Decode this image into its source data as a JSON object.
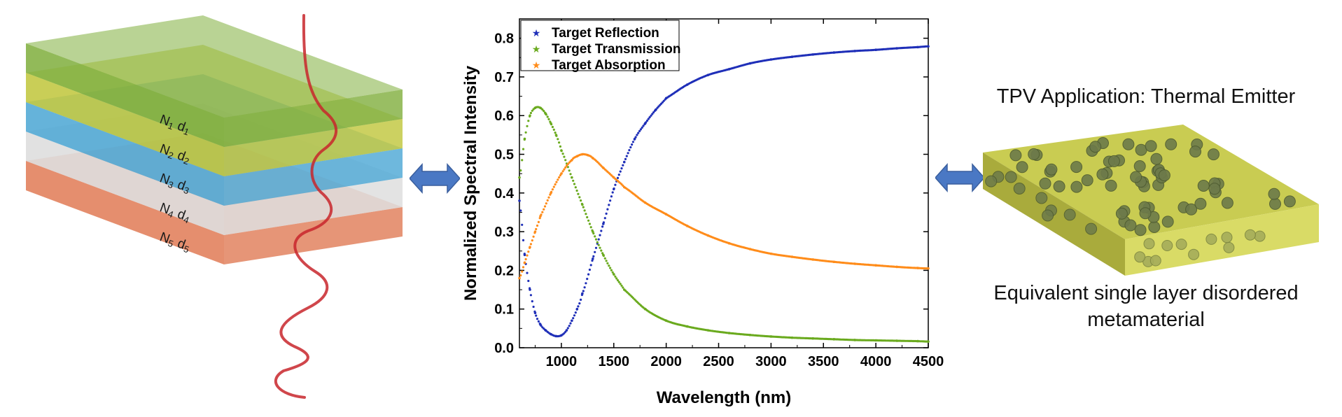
{
  "layers": [
    {
      "n": "N",
      "n_sub": "1",
      "d": "d",
      "d_sub": "1",
      "color": "#7fae3c"
    },
    {
      "n": "N",
      "n_sub": "2",
      "d": "d",
      "d_sub": "2",
      "color": "#bfc63a"
    },
    {
      "n": "N",
      "n_sub": "3",
      "d": "d",
      "d_sub": "3",
      "color": "#4aa6d4"
    },
    {
      "n": "N",
      "n_sub": "4",
      "d": "d",
      "d_sub": "4",
      "color": "#dcdcdc"
    },
    {
      "n": "N",
      "n_sub": "5",
      "d": "d",
      "d_sub": "5",
      "color": "#e07a55"
    }
  ],
  "right_panel": {
    "title": "TPV Application: Thermal Emitter",
    "caption_line1": "Equivalent single layer disordered",
    "caption_line2": "metamaterial",
    "slab_color": "#d3d45a",
    "particle_color": "#6d7a4a"
  },
  "arrow_color": "#4a78c4",
  "chart_data": {
    "type": "scatter",
    "xlabel": "Wavelength (nm)",
    "ylabel": "Normalized Spectral Intensity",
    "xlim": [
      600,
      4500
    ],
    "ylim": [
      0,
      0.85
    ],
    "x_ticks": [
      "1000",
      "1500",
      "2000",
      "2500",
      "3000",
      "3500",
      "4000",
      "4500"
    ],
    "y_ticks": [
      "0.0",
      "0.1",
      "0.2",
      "0.3",
      "0.4",
      "0.5",
      "0.6",
      "0.7",
      "0.8"
    ],
    "legend_position": "top-left",
    "series": [
      {
        "name": "Target Reflection",
        "color": "#1f2fb8",
        "x": [
          600,
          650,
          700,
          750,
          800,
          850,
          900,
          950,
          1000,
          1050,
          1100,
          1150,
          1200,
          1300,
          1400,
          1500,
          1600,
          1700,
          1800,
          1900,
          2000,
          2200,
          2400,
          2600,
          2800,
          3000,
          3200,
          3400,
          3600,
          3800,
          4000,
          4200,
          4400,
          4500
        ],
        "y": [
          0.38,
          0.24,
          0.15,
          0.09,
          0.06,
          0.045,
          0.035,
          0.03,
          0.032,
          0.045,
          0.07,
          0.1,
          0.14,
          0.23,
          0.32,
          0.41,
          0.48,
          0.54,
          0.58,
          0.615,
          0.645,
          0.68,
          0.705,
          0.72,
          0.735,
          0.745,
          0.752,
          0.758,
          0.763,
          0.767,
          0.77,
          0.774,
          0.777,
          0.779
        ]
      },
      {
        "name": "Target Transmission",
        "color": "#6aaa1e",
        "x": [
          600,
          650,
          700,
          750,
          800,
          850,
          900,
          950,
          1000,
          1100,
          1200,
          1300,
          1400,
          1500,
          1600,
          1800,
          2000,
          2200,
          2400,
          2600,
          2800,
          3000,
          3200,
          3400,
          3600,
          3800,
          4000,
          4200,
          4400,
          4500
        ],
        "y": [
          0.44,
          0.54,
          0.6,
          0.62,
          0.62,
          0.605,
          0.58,
          0.55,
          0.51,
          0.44,
          0.37,
          0.3,
          0.24,
          0.19,
          0.15,
          0.1,
          0.07,
          0.055,
          0.045,
          0.038,
          0.033,
          0.029,
          0.026,
          0.024,
          0.022,
          0.02,
          0.019,
          0.018,
          0.017,
          0.016
        ]
      },
      {
        "name": "Target Absorption",
        "color": "#ff8c1a",
        "x": [
          600,
          650,
          700,
          750,
          800,
          900,
          1000,
          1100,
          1150,
          1200,
          1250,
          1300,
          1400,
          1500,
          1600,
          1800,
          2000,
          2200,
          2400,
          2600,
          2800,
          3000,
          3200,
          3400,
          3600,
          3800,
          4000,
          4200,
          4400,
          4500
        ],
        "y": [
          0.18,
          0.22,
          0.26,
          0.3,
          0.34,
          0.4,
          0.45,
          0.485,
          0.495,
          0.5,
          0.498,
          0.49,
          0.465,
          0.44,
          0.415,
          0.375,
          0.345,
          0.315,
          0.29,
          0.27,
          0.255,
          0.243,
          0.235,
          0.228,
          0.222,
          0.217,
          0.213,
          0.209,
          0.206,
          0.205
        ]
      }
    ]
  }
}
